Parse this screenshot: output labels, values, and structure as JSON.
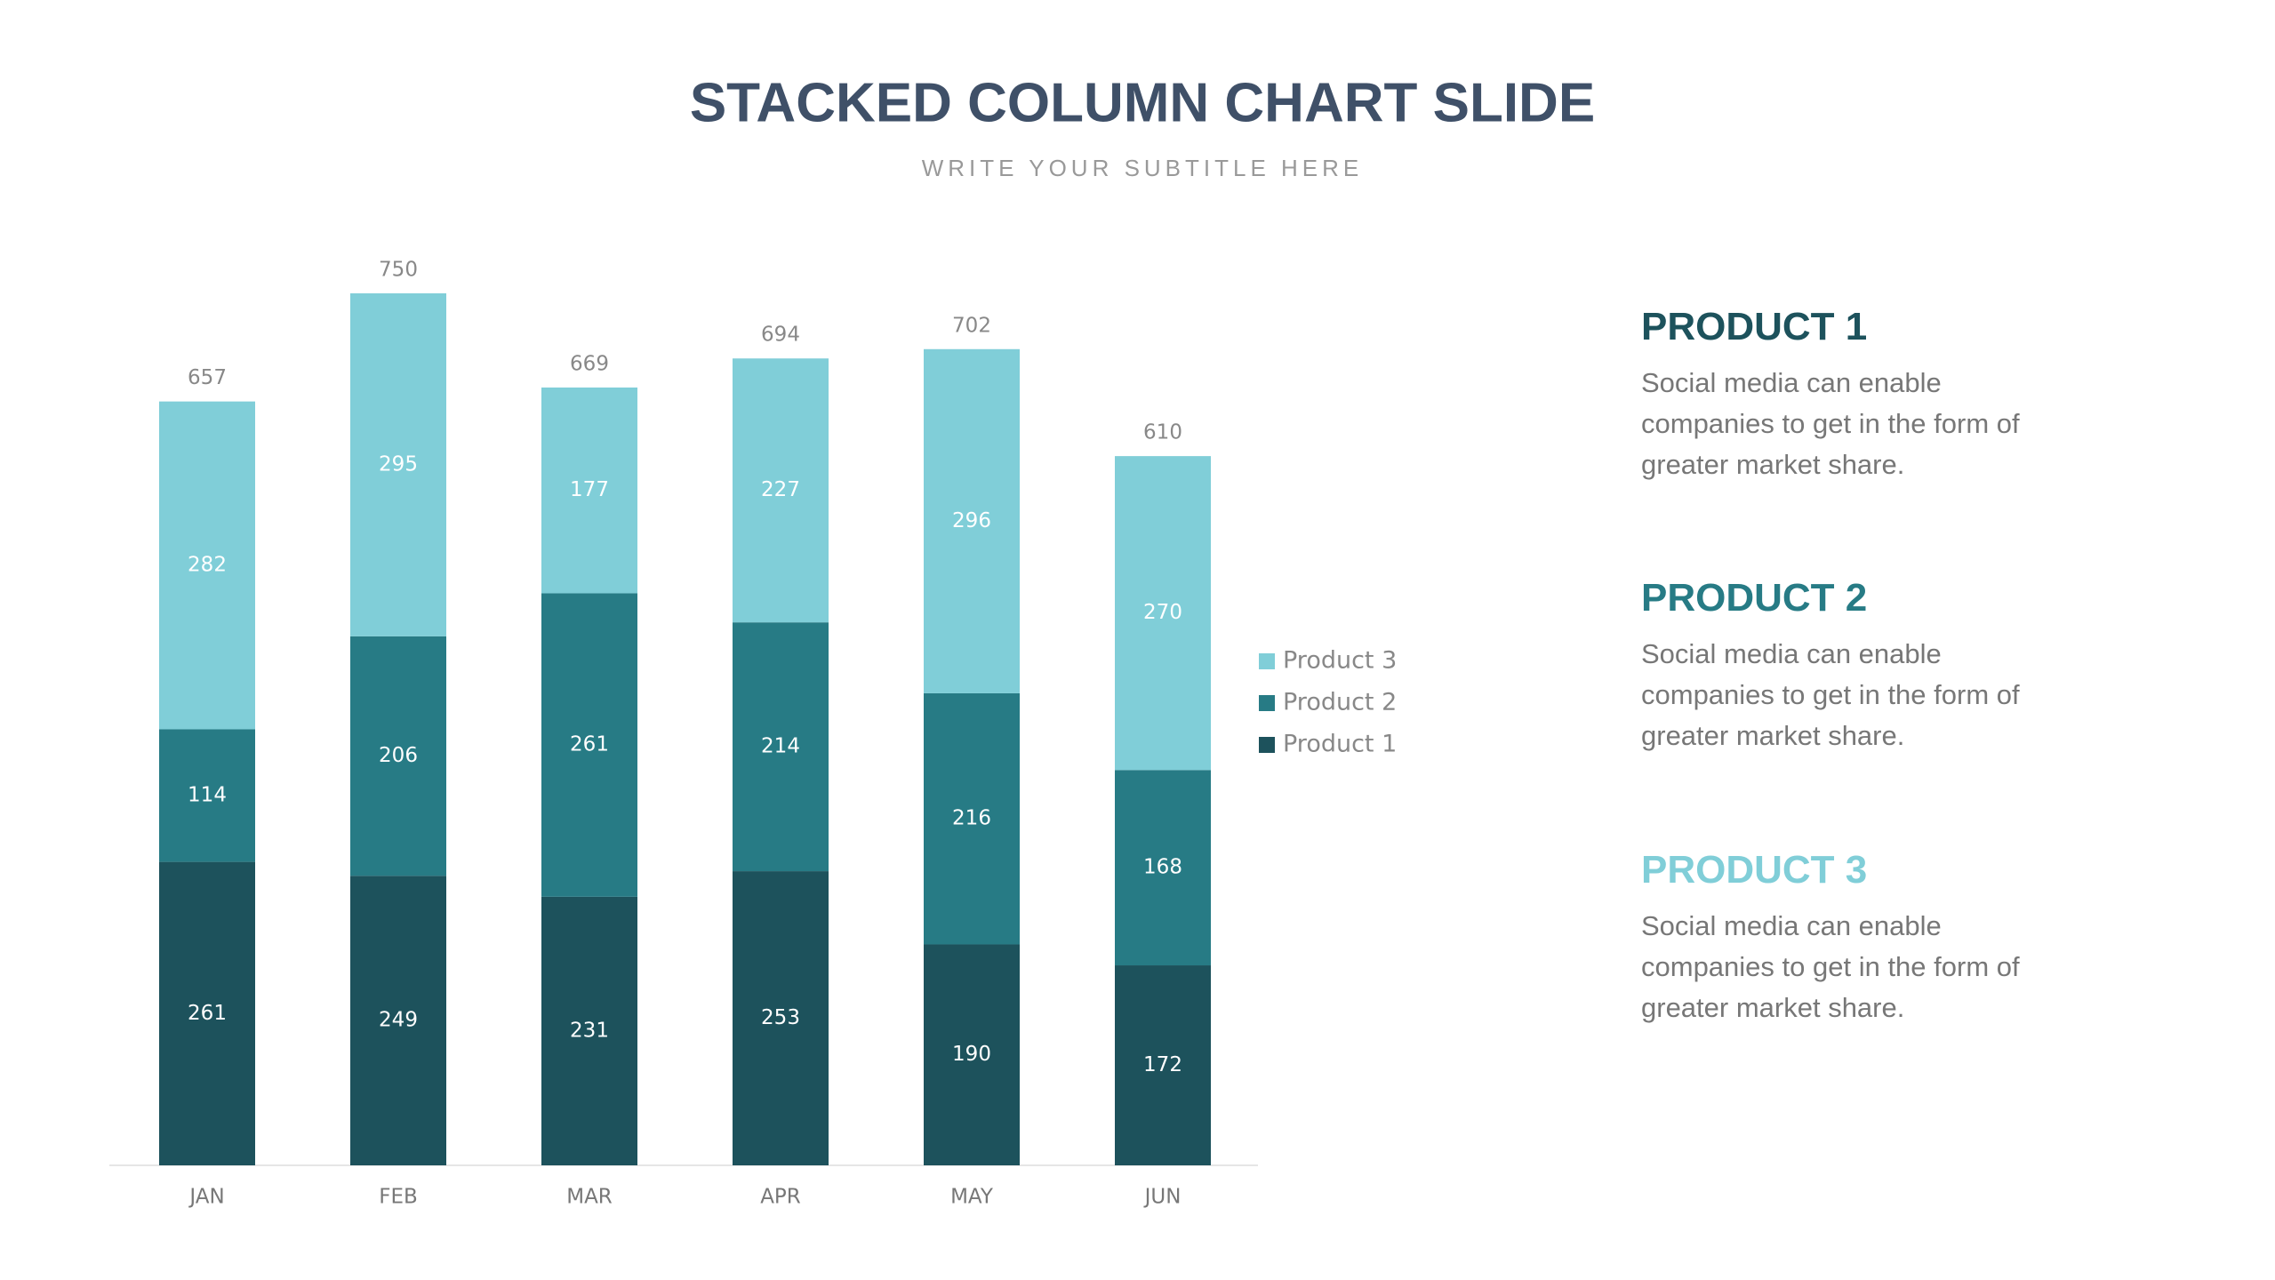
{
  "chart_data": {
    "type": "stacked_bar",
    "title": "STACKED COLUMN CHART SLIDE",
    "subtitle": "WRITE YOUR SUBTITLE HERE",
    "categories": [
      "JAN",
      "FEB",
      "MAR",
      "APR",
      "MAY",
      "JUN"
    ],
    "series": [
      {
        "name": "Product 1",
        "color": "#1d525c",
        "values": [
          261,
          249,
          231,
          253,
          190,
          172
        ]
      },
      {
        "name": "Product 2",
        "color": "#277b85",
        "values": [
          114,
          206,
          261,
          214,
          216,
          168
        ]
      },
      {
        "name": "Product 3",
        "color": "#80ced8",
        "values": [
          282,
          295,
          177,
          227,
          296,
          270
        ]
      }
    ],
    "totals": [
      657,
      750,
      669,
      694,
      702,
      610
    ],
    "legend": "right"
  },
  "products": [
    {
      "title": "PRODUCT 1",
      "text": "Social media can enable companies to get in the form of greater market share."
    },
    {
      "title": "PRODUCT 2",
      "text": "Social media can enable companies to get in the form of greater market share."
    },
    {
      "title": "PRODUCT 3",
      "text": "Social media can enable companies to get in the form of greater market share."
    }
  ]
}
